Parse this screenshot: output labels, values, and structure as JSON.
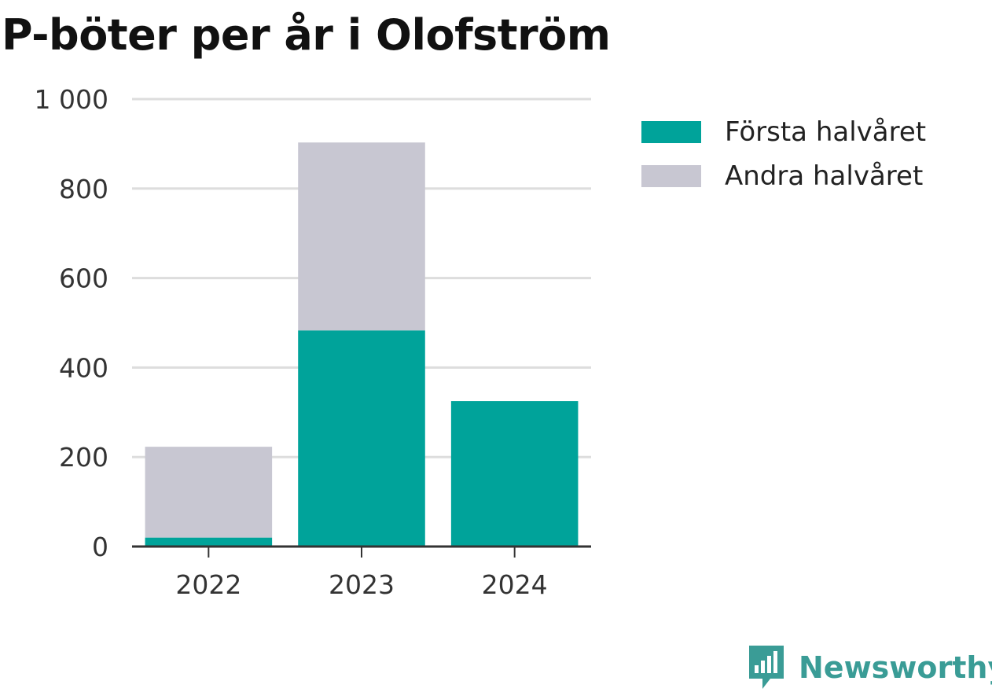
{
  "title": "P-böter per år i Olofström",
  "chart_data": {
    "type": "bar",
    "stacked": true,
    "categories": [
      "2022",
      "2023",
      "2024"
    ],
    "series": [
      {
        "name": "Första halvåret",
        "values": [
          20,
          483,
          325
        ],
        "color": "#00a39a"
      },
      {
        "name": "Andra halvåret",
        "values": [
          203,
          420,
          0
        ],
        "color": "#c8c7d2"
      }
    ],
    "ylim": [
      0,
      1000
    ],
    "yticks": [
      0,
      200,
      400,
      600,
      800,
      1000
    ],
    "ytick_labels": [
      "0",
      "200",
      "400",
      "600",
      "800",
      "1 000"
    ],
    "xlabel": "",
    "ylabel": "",
    "grid": true,
    "legend_position": "right"
  },
  "brand": {
    "name": "Newsworthy",
    "color": "#3a9c96"
  }
}
